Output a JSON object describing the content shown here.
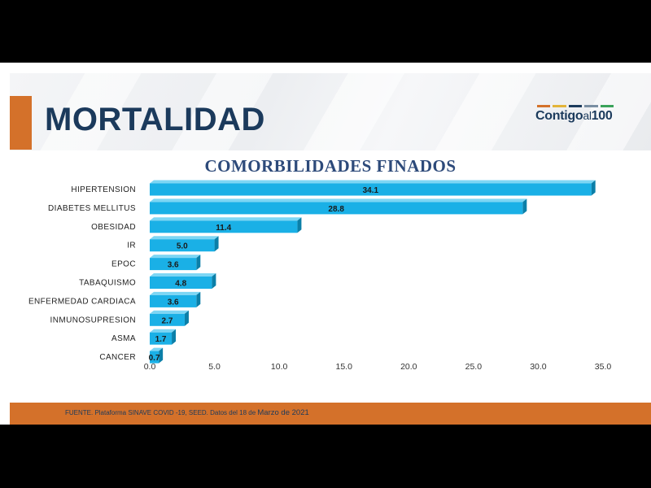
{
  "slide": {
    "title": "MORTALIDAD",
    "logo": {
      "part1": "Contigo",
      "part2": "al",
      "part3": "100"
    },
    "footer_prefix": "FUENTE. Plataforma SINAVE COVID -19, SEED. Datos del 18 de ",
    "footer_emphasis": "Marzo de 2021"
  },
  "colors": {
    "title": "#1b3a5c",
    "accent_orange": "#d4712a",
    "bar_front": "#1ab0e6",
    "bar_side": "#0b7fa8",
    "bar_top": "#7dd6f4"
  },
  "chart_data": {
    "type": "bar",
    "orientation": "horizontal",
    "title": "COMORBILIDADES FINADOS",
    "categories": [
      "HIPERTENSION",
      "DIABETES MELLITUS",
      "OBESIDAD",
      "IR",
      "EPOC",
      "TABAQUISMO",
      "ENFERMEDAD CARDIACA",
      "INMUNOSUPRESION",
      "ASMA",
      "CANCER"
    ],
    "values": [
      34.1,
      28.8,
      11.4,
      5.0,
      3.6,
      4.8,
      3.6,
      2.7,
      1.7,
      0.7
    ],
    "value_labels": [
      "34.1",
      "28.8",
      "11.4",
      "5.0",
      "3.6",
      "4.8",
      "3.6",
      "2.7",
      "1.7",
      "0.7"
    ],
    "xlim": [
      0,
      35
    ],
    "x_ticks": [
      "0.0",
      "5.0",
      "10.0",
      "15.0",
      "20.0",
      "25.0",
      "30.0",
      "35.0"
    ],
    "grid": false,
    "legend": "none"
  }
}
